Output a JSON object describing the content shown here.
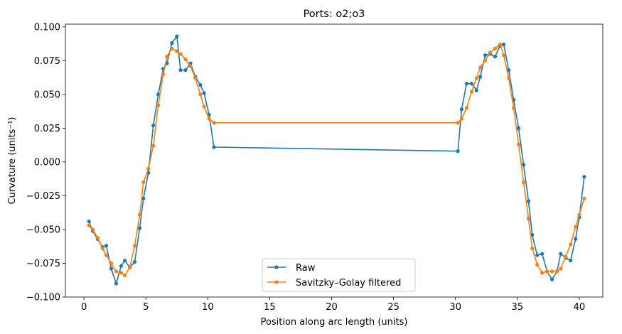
{
  "chart_data": {
    "type": "line",
    "title": "Ports: o2;o3",
    "xlabel": "Position along arc length (units)",
    "ylabel": "Curvature (units⁻¹)",
    "xlim": [
      -1.5,
      41.9
    ],
    "ylim": [
      -0.1,
      0.102
    ],
    "xticks": [
      0,
      5,
      10,
      15,
      20,
      25,
      30,
      35,
      40
    ],
    "xtick_labels": [
      "0",
      "5",
      "10",
      "15",
      "20",
      "25",
      "30",
      "35",
      "40"
    ],
    "yticks": [
      -0.1,
      -0.075,
      -0.05,
      -0.025,
      0.0,
      0.025,
      0.05,
      0.075,
      0.1
    ],
    "ytick_labels": [
      "−0.100",
      "−0.075",
      "−0.050",
      "−0.025",
      "0.000",
      "0.025",
      "0.050",
      "0.075",
      "0.100"
    ],
    "grid": false,
    "legend_position": "bottom-center",
    "series": [
      {
        "name": "Raw",
        "color": "#1f77b4",
        "marker": "circle",
        "x": [
          0.4,
          0.7,
          1.1,
          1.5,
          1.8,
          2.2,
          2.6,
          3.0,
          3.3,
          3.7,
          4.1,
          4.5,
          4.8,
          5.2,
          5.6,
          6.0,
          6.4,
          6.7,
          7.1,
          7.5,
          7.8,
          8.2,
          8.6,
          9.0,
          9.4,
          9.7,
          10.1,
          10.5,
          30.2,
          30.5,
          30.9,
          31.3,
          31.7,
          32.0,
          32.4,
          32.8,
          33.2,
          33.6,
          33.9,
          34.3,
          34.7,
          35.1,
          35.5,
          35.9,
          36.2,
          36.6,
          37.0,
          37.4,
          37.8,
          38.2,
          38.5,
          38.9,
          39.3,
          39.7,
          40.0,
          40.4
        ],
        "y": [
          -0.044,
          -0.051,
          -0.057,
          -0.063,
          -0.062,
          -0.079,
          -0.09,
          -0.077,
          -0.073,
          -0.078,
          -0.074,
          -0.049,
          -0.027,
          -0.008,
          0.027,
          0.05,
          0.069,
          0.073,
          0.088,
          0.093,
          0.068,
          0.068,
          0.073,
          0.063,
          0.057,
          0.051,
          0.035,
          0.011,
          0.008,
          0.039,
          0.058,
          0.058,
          0.053,
          0.063,
          0.079,
          0.08,
          0.078,
          0.086,
          0.087,
          0.068,
          0.046,
          0.025,
          -0.002,
          -0.029,
          -0.054,
          -0.069,
          -0.068,
          -0.081,
          -0.087,
          -0.081,
          -0.068,
          -0.071,
          -0.073,
          -0.057,
          -0.041,
          -0.011
        ]
      },
      {
        "name": "Savitzky–Golay filtered",
        "color": "#ff7f0e",
        "marker": "circle",
        "x": [
          0.4,
          0.7,
          1.1,
          1.5,
          1.8,
          2.2,
          2.6,
          3.0,
          3.3,
          3.7,
          4.1,
          4.5,
          4.8,
          5.2,
          5.6,
          6.0,
          6.4,
          6.7,
          7.1,
          7.5,
          7.8,
          8.2,
          8.6,
          9.0,
          9.4,
          9.7,
          10.1,
          10.5,
          30.2,
          30.5,
          30.9,
          31.3,
          31.7,
          32.0,
          32.4,
          32.8,
          33.2,
          33.6,
          33.9,
          34.3,
          34.7,
          35.1,
          35.5,
          35.9,
          36.2,
          36.6,
          37.0,
          37.4,
          37.8,
          38.2,
          38.5,
          38.9,
          39.3,
          39.7,
          40.0,
          40.4
        ],
        "y": [
          -0.047,
          -0.05,
          -0.056,
          -0.064,
          -0.069,
          -0.075,
          -0.081,
          -0.082,
          -0.084,
          -0.078,
          -0.062,
          -0.039,
          -0.015,
          -0.005,
          0.012,
          0.042,
          0.065,
          0.078,
          0.084,
          0.082,
          0.08,
          0.076,
          0.071,
          0.062,
          0.05,
          0.041,
          0.032,
          0.029,
          0.029,
          0.032,
          0.04,
          0.052,
          0.062,
          0.07,
          0.075,
          0.081,
          0.084,
          0.087,
          0.079,
          0.062,
          0.04,
          0.013,
          -0.015,
          -0.042,
          -0.064,
          -0.076,
          -0.082,
          -0.081,
          -0.081,
          -0.081,
          -0.079,
          -0.07,
          -0.061,
          -0.048,
          -0.039,
          -0.027
        ]
      }
    ]
  }
}
